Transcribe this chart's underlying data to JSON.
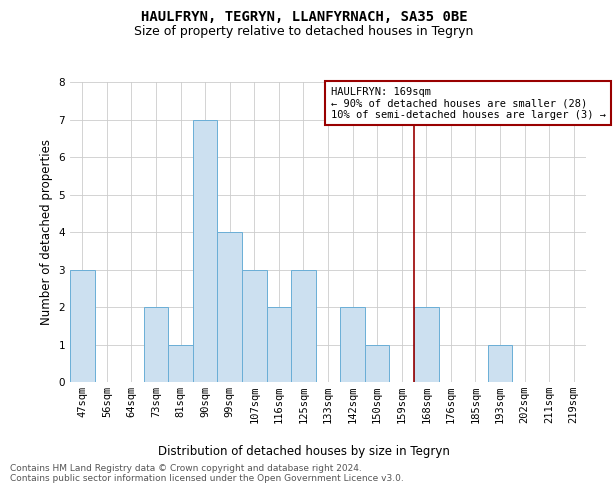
{
  "title": "HAULFRYN, TEGRYN, LLANFYRNACH, SA35 0BE",
  "subtitle": "Size of property relative to detached houses in Tegryn",
  "xlabel": "Distribution of detached houses by size in Tegryn",
  "ylabel": "Number of detached properties",
  "footnote1": "Contains HM Land Registry data © Crown copyright and database right 2024.",
  "footnote2": "Contains public sector information licensed under the Open Government Licence v3.0.",
  "bar_labels": [
    "47sqm",
    "56sqm",
    "64sqm",
    "73sqm",
    "81sqm",
    "90sqm",
    "99sqm",
    "107sqm",
    "116sqm",
    "125sqm",
    "133sqm",
    "142sqm",
    "150sqm",
    "159sqm",
    "168sqm",
    "176sqm",
    "185sqm",
    "193sqm",
    "202sqm",
    "211sqm",
    "219sqm"
  ],
  "bar_values": [
    3,
    0,
    0,
    2,
    1,
    7,
    4,
    3,
    2,
    3,
    0,
    2,
    1,
    0,
    2,
    0,
    0,
    1,
    0,
    0,
    0
  ],
  "bar_color": "#cce0f0",
  "bar_edge_color": "#6aaed6",
  "ylim": [
    0,
    8
  ],
  "yticks": [
    0,
    1,
    2,
    3,
    4,
    5,
    6,
    7,
    8
  ],
  "property_line_index": 14,
  "property_line_color": "#990000",
  "annotation_title": "HAULFRYN: 169sqm",
  "annotation_line1": "← 90% of detached houses are smaller (28)",
  "annotation_line2": "10% of semi-detached houses are larger (3) →",
  "annotation_box_color": "#990000",
  "grid_color": "#cccccc",
  "background_color": "#ffffff",
  "title_fontsize": 10,
  "subtitle_fontsize": 9,
  "axis_label_fontsize": 8.5,
  "tick_fontsize": 7.5,
  "annotation_fontsize": 7.5,
  "footnote_fontsize": 6.5
}
